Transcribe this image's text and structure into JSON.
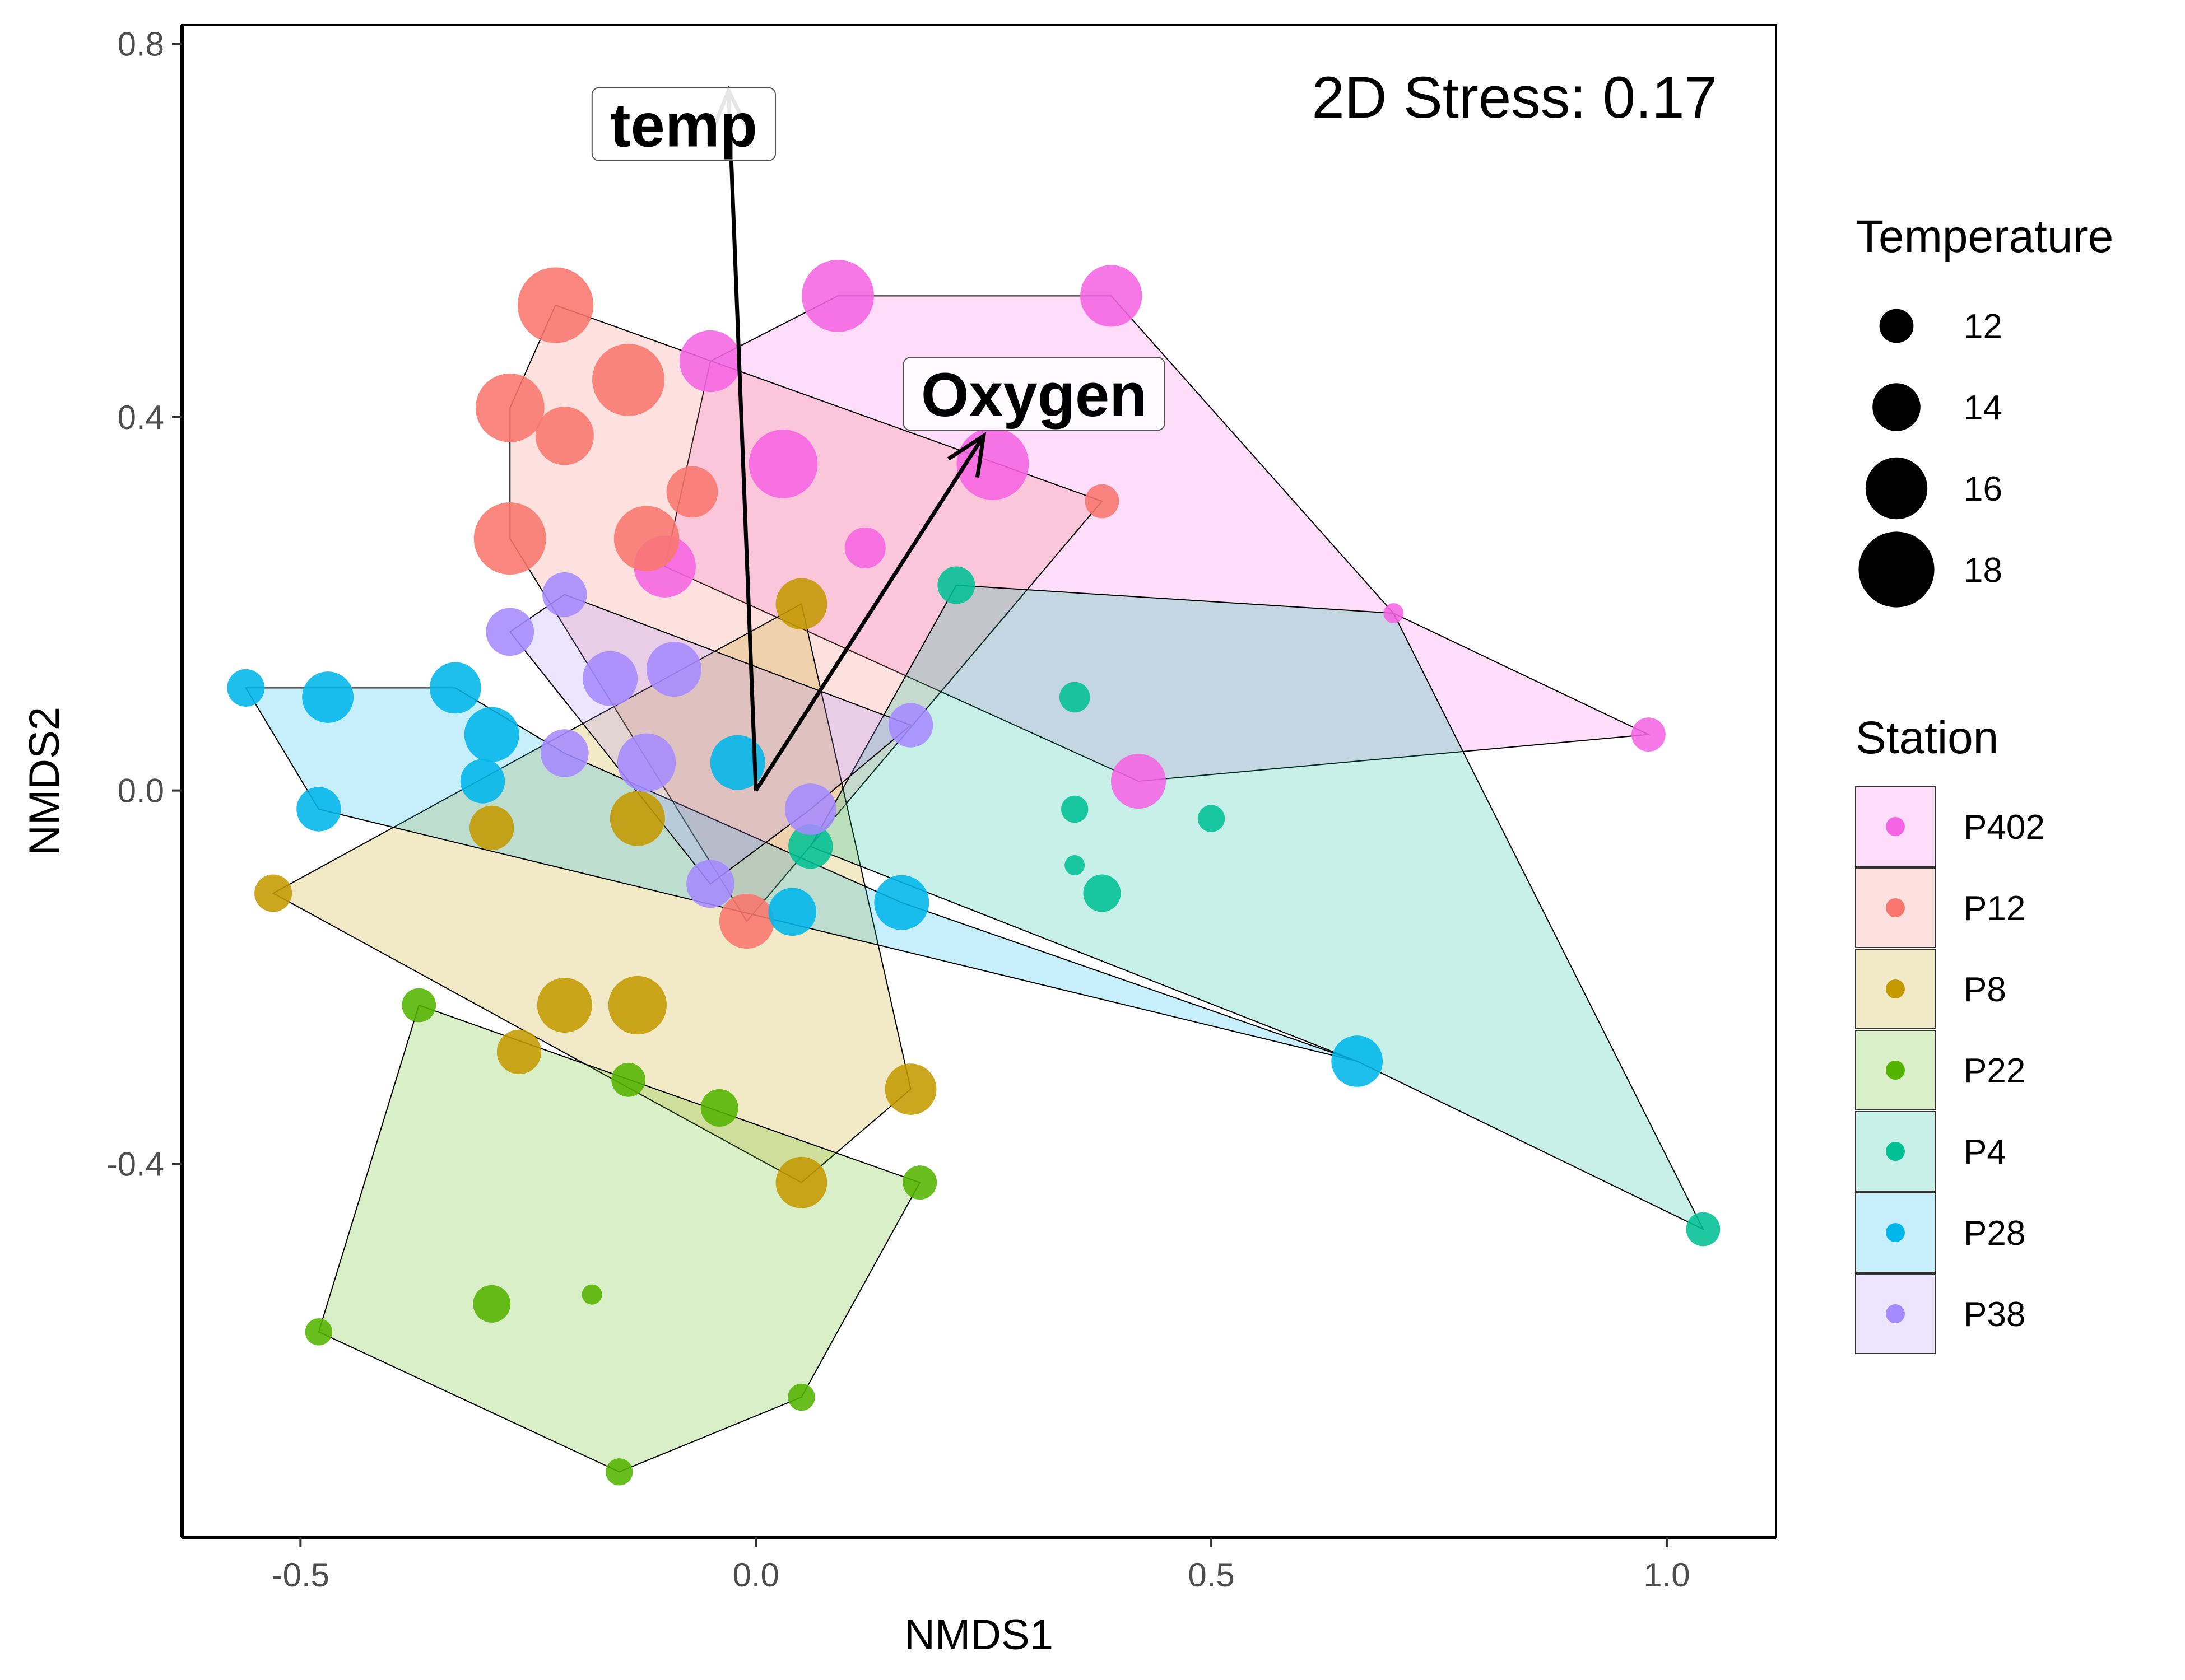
{
  "chart_data": {
    "type": "scatter",
    "xlabel": "NMDS1",
    "ylabel": "NMDS2",
    "xlim": [
      -0.63,
      1.12
    ],
    "ylim": [
      -0.8,
      0.82
    ],
    "x_ticks": [
      -0.5,
      0.0,
      0.5,
      1.0
    ],
    "x_tick_labels": [
      "-0.5",
      "0.0",
      "0.5",
      "1.0"
    ],
    "y_ticks": [
      -0.4,
      0.0,
      0.4,
      0.8
    ],
    "y_tick_labels": [
      "-0.4",
      "0.0",
      "0.4",
      "0.8"
    ],
    "grid": false,
    "annotation": "2D Stress: 0.17",
    "size_legend": {
      "title": "Temperature",
      "entries": [
        {
          "label": "12",
          "value": 12
        },
        {
          "label": "14",
          "value": 14
        },
        {
          "label": "16",
          "value": 16
        },
        {
          "label": "18",
          "value": 18
        }
      ]
    },
    "color_legend": {
      "title": "Station",
      "placement": "right"
    },
    "vectors": [
      {
        "label": "temp",
        "x": -0.03,
        "y": 0.75
      },
      {
        "label": "Oxygen",
        "x": 0.25,
        "y": 0.38
      }
    ],
    "series": [
      {
        "name": "P402",
        "color": "#F564E3",
        "hull": [
          [
            -0.05,
            0.46
          ],
          [
            0.09,
            0.53
          ],
          [
            0.39,
            0.53
          ],
          [
            0.7,
            0.19
          ],
          [
            0.98,
            0.06
          ],
          [
            0.42,
            0.01
          ],
          [
            -0.1,
            0.24
          ]
        ],
        "points": [
          {
            "x": -0.05,
            "y": 0.46,
            "t": 16
          },
          {
            "x": 0.09,
            "y": 0.53,
            "t": 17.5
          },
          {
            "x": 0.39,
            "y": 0.53,
            "t": 16
          },
          {
            "x": 0.03,
            "y": 0.35,
            "t": 17
          },
          {
            "x": 0.26,
            "y": 0.35,
            "t": 17.5
          },
          {
            "x": 0.12,
            "y": 0.26,
            "t": 13
          },
          {
            "x": -0.1,
            "y": 0.24,
            "t": 16
          },
          {
            "x": 0.7,
            "y": 0.19,
            "t": 10
          },
          {
            "x": 0.98,
            "y": 0.06,
            "t": 12
          },
          {
            "x": 0.42,
            "y": 0.01,
            "t": 15
          }
        ]
      },
      {
        "name": "P12",
        "color": "#F8766D",
        "hull": [
          [
            -0.22,
            0.52
          ],
          [
            0.38,
            0.31
          ],
          [
            -0.01,
            -0.14
          ],
          [
            -0.27,
            0.27
          ],
          [
            -0.27,
            0.41
          ]
        ],
        "points": [
          {
            "x": -0.22,
            "y": 0.52,
            "t": 18
          },
          {
            "x": -0.27,
            "y": 0.41,
            "t": 17
          },
          {
            "x": -0.14,
            "y": 0.44,
            "t": 17.5
          },
          {
            "x": -0.21,
            "y": 0.38,
            "t": 15.5
          },
          {
            "x": -0.07,
            "y": 0.32,
            "t": 14.5
          },
          {
            "x": -0.27,
            "y": 0.27,
            "t": 17.5
          },
          {
            "x": -0.12,
            "y": 0.27,
            "t": 16.5
          },
          {
            "x": 0.38,
            "y": 0.31,
            "t": 12
          },
          {
            "x": -0.01,
            "y": -0.14,
            "t": 15
          }
        ]
      },
      {
        "name": "P8",
        "color": "#C49A00",
        "hull": [
          [
            0.05,
            0.2
          ],
          [
            0.17,
            -0.32
          ],
          [
            0.05,
            -0.42
          ],
          [
            -0.53,
            -0.11
          ]
        ],
        "points": [
          {
            "x": 0.05,
            "y": 0.2,
            "t": 14.5
          },
          {
            "x": -0.29,
            "y": -0.04,
            "t": 13.5
          },
          {
            "x": -0.13,
            "y": -0.03,
            "t": 15
          },
          {
            "x": -0.53,
            "y": -0.11,
            "t": 12.5
          },
          {
            "x": -0.21,
            "y": -0.23,
            "t": 15
          },
          {
            "x": -0.13,
            "y": -0.23,
            "t": 15.5
          },
          {
            "x": -0.26,
            "y": -0.28,
            "t": 13.5
          },
          {
            "x": 0.17,
            "y": -0.32,
            "t": 14.5
          },
          {
            "x": 0.05,
            "y": -0.42,
            "t": 14.5
          }
        ]
      },
      {
        "name": "P22",
        "color": "#53B400",
        "hull": [
          [
            -0.37,
            -0.23
          ],
          [
            0.18,
            -0.42
          ],
          [
            0.05,
            -0.65
          ],
          [
            -0.15,
            -0.73
          ],
          [
            -0.48,
            -0.58
          ]
        ],
        "points": [
          {
            "x": -0.37,
            "y": -0.23,
            "t": 12
          },
          {
            "x": -0.14,
            "y": -0.31,
            "t": 12
          },
          {
            "x": -0.04,
            "y": -0.34,
            "t": 12.5
          },
          {
            "x": 0.18,
            "y": -0.42,
            "t": 12
          },
          {
            "x": -0.29,
            "y": -0.55,
            "t": 12.5
          },
          {
            "x": -0.18,
            "y": -0.54,
            "t": 10
          },
          {
            "x": -0.48,
            "y": -0.58,
            "t": 11
          },
          {
            "x": 0.05,
            "y": -0.65,
            "t": 11
          },
          {
            "x": -0.15,
            "y": -0.73,
            "t": 11
          }
        ]
      },
      {
        "name": "P4",
        "color": "#00C094",
        "hull": [
          [
            0.22,
            0.22
          ],
          [
            0.7,
            0.19
          ],
          [
            1.04,
            -0.47
          ],
          [
            0.66,
            -0.29
          ],
          [
            0.06,
            -0.06
          ]
        ],
        "points": [
          {
            "x": 0.22,
            "y": 0.22,
            "t": 12.5
          },
          {
            "x": 0.35,
            "y": 0.1,
            "t": 11.5
          },
          {
            "x": 0.35,
            "y": -0.02,
            "t": 11
          },
          {
            "x": 0.5,
            "y": -0.03,
            "t": 11
          },
          {
            "x": 0.35,
            "y": -0.08,
            "t": 10
          },
          {
            "x": 0.38,
            "y": -0.11,
            "t": 12.5
          },
          {
            "x": 0.06,
            "y": -0.06,
            "t": 13.5
          },
          {
            "x": 1.04,
            "y": -0.47,
            "t": 12
          }
        ]
      },
      {
        "name": "P28",
        "color": "#00B6EB",
        "hull": [
          [
            -0.56,
            0.11
          ],
          [
            -0.33,
            0.11
          ],
          [
            -0.21,
            0.04
          ],
          [
            0.16,
            -0.12
          ],
          [
            0.66,
            -0.29
          ],
          [
            -0.48,
            -0.02
          ]
        ],
        "points": [
          {
            "x": -0.56,
            "y": 0.11,
            "t": 12.5
          },
          {
            "x": -0.47,
            "y": 0.1,
            "t": 14.5
          },
          {
            "x": -0.33,
            "y": 0.11,
            "t": 14.5
          },
          {
            "x": -0.29,
            "y": 0.06,
            "t": 15
          },
          {
            "x": -0.3,
            "y": 0.01,
            "t": 13.5
          },
          {
            "x": -0.48,
            "y": -0.02,
            "t": 13.5
          },
          {
            "x": -0.02,
            "y": 0.03,
            "t": 15
          },
          {
            "x": 0.04,
            "y": -0.13,
            "t": 14
          },
          {
            "x": 0.16,
            "y": -0.12,
            "t": 15
          },
          {
            "x": 0.66,
            "y": -0.29,
            "t": 14.5
          }
        ]
      },
      {
        "name": "P38",
        "color": "#A58AFF",
        "hull": [
          [
            -0.21,
            0.21
          ],
          [
            0.17,
            0.07
          ],
          [
            0.06,
            -0.02
          ],
          [
            -0.05,
            -0.1
          ],
          [
            -0.27,
            0.17
          ]
        ],
        "points": [
          {
            "x": -0.21,
            "y": 0.21,
            "t": 13.5
          },
          {
            "x": -0.27,
            "y": 0.17,
            "t": 14
          },
          {
            "x": -0.16,
            "y": 0.12,
            "t": 15
          },
          {
            "x": -0.09,
            "y": 0.13,
            "t": 15
          },
          {
            "x": -0.21,
            "y": 0.04,
            "t": 14
          },
          {
            "x": -0.12,
            "y": 0.03,
            "t": 15.5
          },
          {
            "x": 0.17,
            "y": 0.07,
            "t": 13.5
          },
          {
            "x": 0.06,
            "y": -0.02,
            "t": 14.5
          },
          {
            "x": -0.05,
            "y": -0.1,
            "t": 14
          }
        ]
      }
    ]
  }
}
